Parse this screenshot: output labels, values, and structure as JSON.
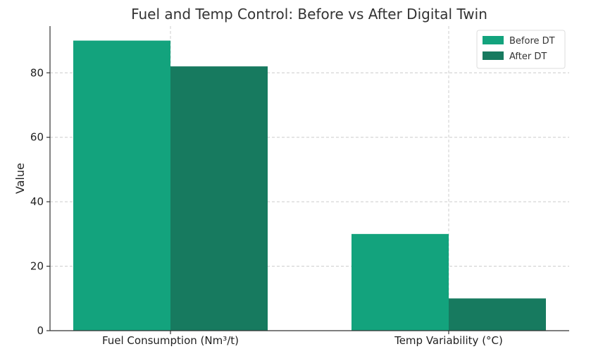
{
  "chart_data": {
    "type": "bar",
    "title": "Fuel and Temp Control: Before vs After Digital Twin",
    "xlabel": "",
    "ylabel": "Value",
    "categories": [
      "Fuel Consumption (Nm³/t)",
      "Temp Variability (°C)"
    ],
    "series": [
      {
        "name": "Before DT",
        "values": [
          90,
          30
        ],
        "color": "#13a37d"
      },
      {
        "name": "After DT",
        "values": [
          82,
          10
        ],
        "color": "#177a5f"
      }
    ],
    "ylim": [
      0,
      94.5
    ],
    "yticks": [
      0,
      20,
      40,
      60,
      80
    ],
    "grid": true,
    "legend_position": "top-right"
  }
}
